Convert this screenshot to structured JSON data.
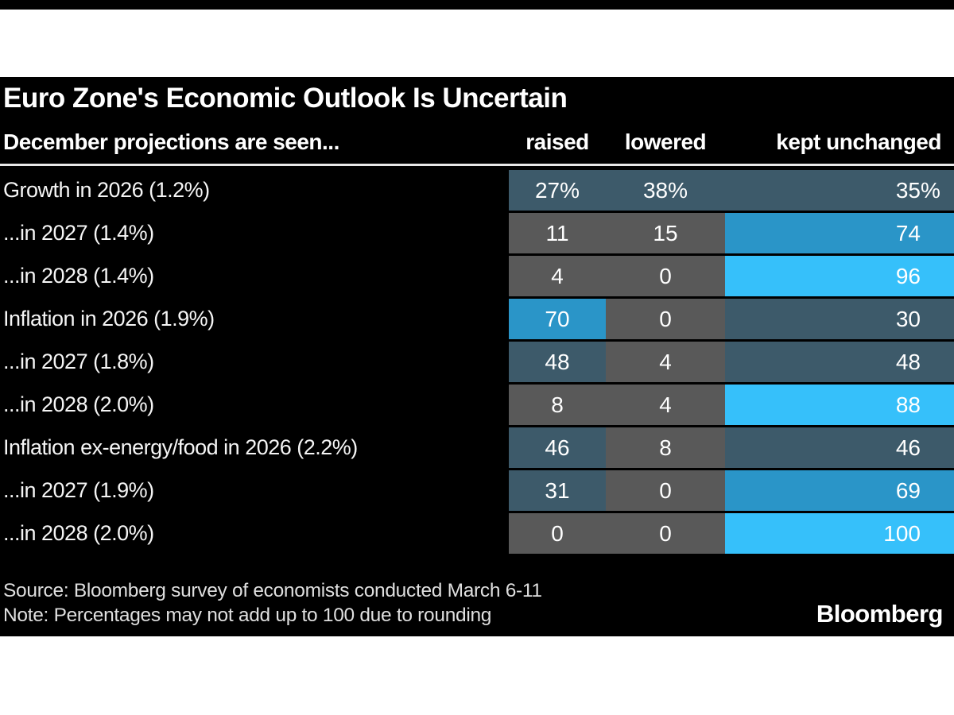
{
  "header": {
    "title": "Euro Zone's Economic Outlook Is Uncertain",
    "subtitle": "December projections are seen..."
  },
  "footer": {
    "source": "Source: Bloomberg survey of economists conducted March 6-11",
    "note": "Note: Percentages may not add up to 100 due to rounding",
    "logo": "Bloomberg"
  },
  "colors": {
    "canvas_bg": "#000000",
    "page_bg": "#ffffff",
    "divider": "#e8e8e8",
    "bin_low_gray": "#595959",
    "bin_mid_slate": "#3d5a6a",
    "bin_high_blue": "#2a95c8",
    "bin_top_cyan": "#36c0fa"
  },
  "chart_data": {
    "type": "heatmap",
    "title": "Euro Zone's Economic Outlook Is Uncertain",
    "subtitle": "December projections are seen...",
    "columns": [
      "raised",
      "lowered",
      "kept unchanged"
    ],
    "unit": "percent of surveyed economists",
    "rows": [
      {
        "label": "Growth in 2026 (1.2%)",
        "display": [
          "27%",
          "38%",
          "35%"
        ],
        "numeric": [
          27,
          38,
          35
        ]
      },
      {
        "label": "...in 2027 (1.4%)",
        "display": [
          "11",
          "15",
          "74"
        ],
        "numeric": [
          11,
          15,
          74
        ]
      },
      {
        "label": "...in 2028 (1.4%)",
        "display": [
          "4",
          "0",
          "96"
        ],
        "numeric": [
          4,
          0,
          96
        ]
      },
      {
        "label": "Inflation in 2026 (1.9%)",
        "display": [
          "70",
          "0",
          "30"
        ],
        "numeric": [
          70,
          0,
          30
        ]
      },
      {
        "label": "...in 2027 (1.8%)",
        "display": [
          "48",
          "4",
          "48"
        ],
        "numeric": [
          48,
          4,
          48
        ]
      },
      {
        "label": "...in 2028 (2.0%)",
        "display": [
          "8",
          "4",
          "88"
        ],
        "numeric": [
          8,
          4,
          88
        ]
      },
      {
        "label": "Inflation ex-energy/food in 2026 (2.2%)",
        "display": [
          "46",
          "8",
          "46"
        ],
        "numeric": [
          46,
          8,
          46
        ]
      },
      {
        "label": "...in 2027 (1.9%)",
        "display": [
          "31",
          "0",
          "69"
        ],
        "numeric": [
          31,
          0,
          69
        ]
      },
      {
        "label": "...in 2028 (2.0%)",
        "display": [
          "0",
          "0",
          "100"
        ],
        "numeric": [
          0,
          0,
          100
        ]
      }
    ],
    "color_scale": {
      "type": "binned",
      "bins": [
        {
          "min": 0,
          "max": 25,
          "color": "#595959"
        },
        {
          "min": 25,
          "max": 50,
          "color": "#3d5a6a"
        },
        {
          "min": 50,
          "max": 75,
          "color": "#2a95c8"
        },
        {
          "min": 75,
          "max": 101,
          "color": "#36c0fa"
        }
      ]
    },
    "value_range": [
      0,
      100
    ],
    "legend": "none",
    "grid": "off"
  }
}
